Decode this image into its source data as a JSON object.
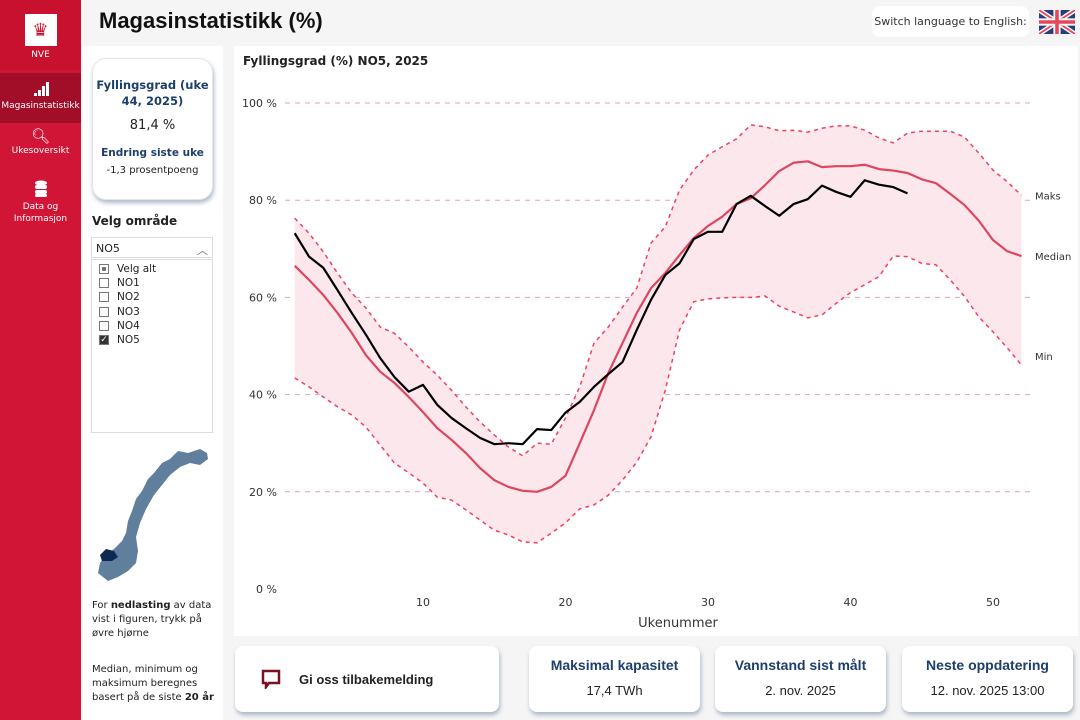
{
  "sidebar": {
    "logo_text": "NVE",
    "items": [
      {
        "label": "Magasinstatistikk",
        "icon": "bar-signal-icon"
      },
      {
        "label": "Ukesoversikt",
        "icon": "magnifier-pulse-icon"
      },
      {
        "label": "Data og Informasjon",
        "icon": "database-icon"
      }
    ]
  },
  "header": {
    "title": "Magasinstatistikk (%)",
    "lang_button": "Switch language to English:"
  },
  "kpi": {
    "heading": "Fyllingsgrad (uke 44, 2025)",
    "value": "81,4 %",
    "change_heading": "Endring siste uke",
    "change_value": "-1,3 prosentpoeng"
  },
  "filter": {
    "label": "Velg område",
    "selected": "NO5",
    "options": [
      {
        "label": "Velg alt",
        "state": "partial"
      },
      {
        "label": "NO1",
        "state": "off"
      },
      {
        "label": "NO2",
        "state": "off"
      },
      {
        "label": "NO3",
        "state": "off"
      },
      {
        "label": "NO4",
        "state": "off"
      },
      {
        "label": "NO5",
        "state": "on"
      }
    ]
  },
  "notes": {
    "download_pre": "For ",
    "download_bold": "nedlasting",
    "download_post": " av data vist i figuren, trykk på øvre hjørne",
    "stats_pre": "Median, minimum og maksimum beregnes basert på de siste ",
    "stats_bold": "20 år"
  },
  "cards": {
    "feedback": "Gi oss tilbakemelding",
    "capacity_label": "Maksimal kapasitet",
    "capacity_value": "17,4 TWh",
    "measured_label": "Vannstand sist målt",
    "measured_value": "2. nov. 2025",
    "next_label": "Neste oppdatering",
    "next_value": "12. nov. 2025 13:00"
  },
  "colors": {
    "brand": "#d11536",
    "median": "#dc4660",
    "band": "#fce8ec",
    "current": "#000000",
    "heading": "#1d3f6b"
  },
  "chart_data": {
    "type": "line",
    "title": "Fyllingsgrad (%) NO5, 2025",
    "xlabel": "Ukenummer",
    "ylabel": "",
    "xlim": [
      1,
      52
    ],
    "ylim": [
      0,
      100
    ],
    "xticks": [
      10,
      20,
      30,
      40,
      50
    ],
    "yticks": [
      {
        "v": 0,
        "label": "0 %"
      },
      {
        "v": 20,
        "label": "20 %"
      },
      {
        "v": 40,
        "label": "40 %"
      },
      {
        "v": 60,
        "label": "60 %"
      },
      {
        "v": 80,
        "label": "80 %"
      },
      {
        "v": 100,
        "label": "100 %"
      }
    ],
    "grid": true,
    "series": [
      {
        "name": "Maks",
        "style": "dashed",
        "values": [
          76.3,
          73.2,
          69.4,
          65,
          60.9,
          57.8,
          53.9,
          52.6,
          49.8,
          46.7,
          44,
          40.9,
          37.5,
          34.4,
          31.7,
          29.2,
          27.4,
          30,
          29.8,
          35.2,
          41.6,
          50.6,
          53.9,
          58,
          61.9,
          71.2,
          74.5,
          82.1,
          86.2,
          89.3,
          91,
          92.6,
          95.5,
          95.1,
          94.3,
          94.4,
          94,
          94.8,
          95.3,
          95.3,
          94.4,
          92.8,
          91.8,
          93.8,
          94.2,
          94.2,
          94.2,
          93,
          89.7,
          86.2,
          83.8,
          81
        ]
      },
      {
        "name": "Median",
        "style": "solid",
        "values": [
          66.5,
          63.6,
          60.5,
          56.8,
          52.7,
          48.1,
          44.7,
          42.4,
          39.5,
          36.4,
          33.1,
          30.7,
          28,
          24.9,
          22.4,
          21,
          20.2,
          20,
          21,
          23.3,
          30,
          36.8,
          44.4,
          50.6,
          56.8,
          61.9,
          65,
          68.7,
          72.2,
          74.7,
          76.6,
          79.2,
          80.4,
          83.1,
          86,
          87.7,
          88,
          86.8,
          87,
          87,
          87.3,
          86.4,
          86.1,
          85.6,
          84.3,
          83.5,
          81.3,
          79,
          75.8,
          71.8,
          69.5,
          68.5
        ]
      },
      {
        "name": "Min",
        "style": "dashed",
        "values": [
          43.4,
          41.6,
          39.5,
          37.5,
          35.8,
          33.3,
          29.6,
          25.9,
          23.9,
          21.8,
          18.9,
          18.3,
          16.3,
          14.2,
          12.1,
          11.1,
          9.7,
          9.5,
          11.5,
          13.6,
          16.5,
          17.3,
          19.3,
          22.4,
          26.1,
          31.3,
          40.9,
          53.3,
          59.1,
          59.7,
          59.9,
          60,
          60,
          60.3,
          58.2,
          57,
          55.8,
          56.4,
          58.8,
          61,
          62.6,
          64.3,
          68.5,
          68.4,
          67,
          66.7,
          63.6,
          60.2,
          56,
          52.9,
          49.6,
          46.1
        ]
      },
      {
        "name": "2025",
        "style": "solid",
        "values": [
          73.2,
          68.4,
          66.1,
          61.5,
          56.8,
          52.3,
          47.5,
          43.6,
          40.6,
          42,
          37.9,
          35.2,
          33.1,
          31.1,
          29.8,
          30,
          29.8,
          32.9,
          32.7,
          36.3,
          38.5,
          41.6,
          44.2,
          46.7,
          53.3,
          59.5,
          64.6,
          67,
          72,
          73.5,
          73.5,
          79.2,
          80.9,
          78.8,
          76.8,
          79.2,
          80.2,
          83,
          81.7,
          80.7,
          84.1,
          83.2,
          82.7,
          81.4
        ]
      }
    ]
  }
}
